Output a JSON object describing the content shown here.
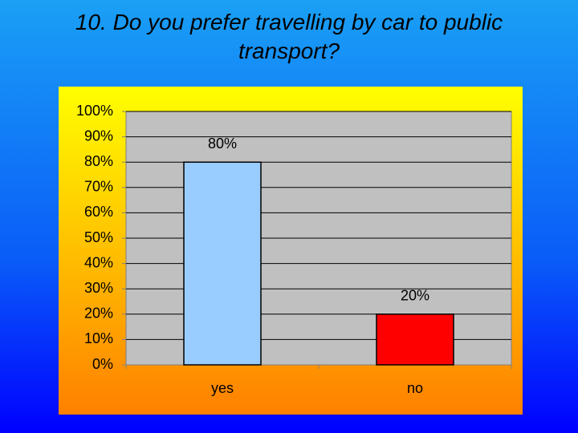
{
  "chart_data": {
    "type": "bar",
    "title": "10. Do you prefer travelling by car to public transport?",
    "categories": [
      "yes",
      "no"
    ],
    "values": [
      80,
      20
    ],
    "value_labels": [
      "80%",
      "20%"
    ],
    "colors": [
      "#99ccff",
      "#ff0000"
    ],
    "ylim": [
      0,
      100
    ],
    "yticks": [
      {
        "value": 0,
        "label": "0%"
      },
      {
        "value": 10,
        "label": "10%"
      },
      {
        "value": 20,
        "label": "20%"
      },
      {
        "value": 30,
        "label": "30%"
      },
      {
        "value": 40,
        "label": "40%"
      },
      {
        "value": 50,
        "label": "50%"
      },
      {
        "value": 60,
        "label": "60%"
      },
      {
        "value": 70,
        "label": "70%"
      },
      {
        "value": 80,
        "label": "80%"
      },
      {
        "value": 90,
        "label": "90%"
      },
      {
        "value": 100,
        "label": "100%"
      }
    ],
    "grid": true
  }
}
